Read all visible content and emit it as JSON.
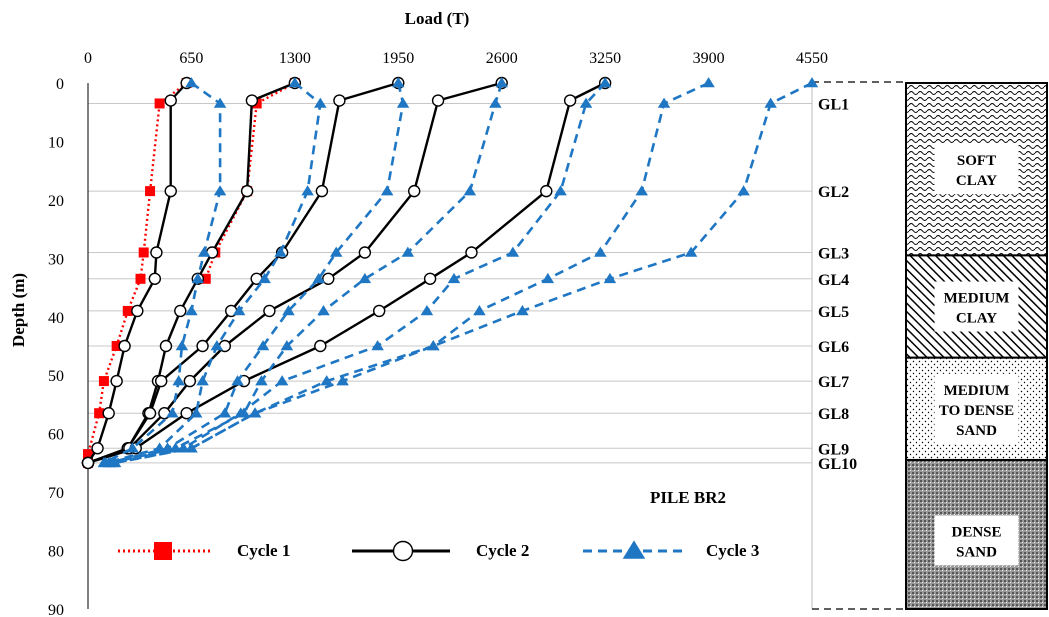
{
  "chart_data": {
    "type": "line",
    "title": "",
    "xlabel": "Load (T)",
    "ylabel": "Depth (m)",
    "xlim": [
      0,
      4550
    ],
    "ylim": [
      0,
      90
    ],
    "x_axis_position": "top",
    "y_inverted": true,
    "xticks": [
      "0",
      "650",
      "1300",
      "1950",
      "2600",
      "3250",
      "3900",
      "4550"
    ],
    "yticks": [
      "0",
      "10",
      "20",
      "30",
      "40",
      "50",
      "60",
      "70",
      "80",
      "90"
    ],
    "grid": "horizontal lines at GL levels",
    "annotation": "PILE BR2",
    "gauge_levels": [
      {
        "label": "GL1",
        "depth": 3.5
      },
      {
        "label": "GL2",
        "depth": 18.5
      },
      {
        "label": "GL3",
        "depth": 29
      },
      {
        "label": "GL4",
        "depth": 33.5
      },
      {
        "label": "GL5",
        "depth": 39
      },
      {
        "label": "GL6",
        "depth": 45
      },
      {
        "label": "GL7",
        "depth": 51
      },
      {
        "label": "GL8",
        "depth": 56.5
      },
      {
        "label": "GL9",
        "depth": 62.5
      },
      {
        "label": "GL10",
        "depth": 65
      }
    ],
    "soil_layers": [
      {
        "name": [
          "SOFT",
          "CLAY"
        ],
        "top": 0,
        "bottom": 29.5,
        "pattern": "soft"
      },
      {
        "name": [
          "MEDIUM",
          "CLAY"
        ],
        "top": 29.5,
        "bottom": 47,
        "pattern": "hatch"
      },
      {
        "name": [
          "MEDIUM",
          "TO DENSE",
          "SAND"
        ],
        "top": 47,
        "bottom": 64.5,
        "pattern": "dots"
      },
      {
        "name": [
          "DENSE",
          "SAND"
        ],
        "top": 64.5,
        "bottom": 90,
        "pattern": "dense"
      }
    ],
    "series": [
      {
        "name": "Cycle 1",
        "color": "#ff0000",
        "marker": "square",
        "style": "dotted",
        "curves": [
          [
            [
              620,
              0
            ],
            [
              450,
              3.5
            ],
            [
              390,
              18.5
            ],
            [
              350,
              29
            ],
            [
              330,
              33.5
            ],
            [
              250,
              39
            ],
            [
              180,
              45
            ],
            [
              100,
              51
            ],
            [
              70,
              56.5
            ],
            [
              0,
              63.5
            ],
            [
              0,
              65
            ]
          ],
          [
            [
              1300,
              0
            ],
            [
              1060,
              3.5
            ],
            [
              1000,
              18.5
            ],
            [
              800,
              29
            ],
            [
              740,
              33.5
            ]
          ]
        ]
      },
      {
        "name": "Cycle 2",
        "color": "#000000",
        "marker": "circle",
        "style": "solid",
        "curves": [
          [
            [
              620,
              0
            ],
            [
              520,
              3
            ],
            [
              520,
              18.5
            ],
            [
              430,
              29
            ],
            [
              420,
              33.5
            ],
            [
              310,
              39
            ],
            [
              230,
              45
            ],
            [
              180,
              51
            ],
            [
              130,
              56.5
            ],
            [
              60,
              62.5
            ],
            [
              0,
              65
            ]
          ],
          [
            [
              1300,
              0
            ],
            [
              1030,
              3
            ],
            [
              1000,
              18.5
            ],
            [
              780,
              29
            ],
            [
              690,
              33.5
            ],
            [
              580,
              39
            ],
            [
              490,
              45
            ],
            [
              440,
              51
            ],
            [
              380,
              56.5
            ],
            [
              250,
              62.5
            ],
            [
              0,
              65
            ]
          ],
          [
            [
              1950,
              0
            ],
            [
              1580,
              3
            ],
            [
              1470,
              18.5
            ],
            [
              1220,
              29
            ],
            [
              1060,
              33.5
            ],
            [
              900,
              39
            ],
            [
              720,
              45
            ],
            [
              460,
              51
            ],
            [
              390,
              56.5
            ],
            [
              250,
              62.5
            ],
            [
              0,
              65
            ]
          ],
          [
            [
              2600,
              0
            ],
            [
              2200,
              3
            ],
            [
              2050,
              18.5
            ],
            [
              1740,
              29
            ],
            [
              1510,
              33.5
            ],
            [
              1140,
              39
            ],
            [
              860,
              45
            ],
            [
              640,
              51
            ],
            [
              480,
              56.5
            ],
            [
              260,
              62.5
            ],
            [
              0,
              65
            ]
          ],
          [
            [
              3250,
              0
            ],
            [
              3030,
              3
            ],
            [
              2880,
              18.5
            ],
            [
              2410,
              29
            ],
            [
              2150,
              33.5
            ],
            [
              1830,
              39
            ],
            [
              1460,
              45
            ],
            [
              980,
              51
            ],
            [
              620,
              56.5
            ],
            [
              300,
              62.5
            ],
            [
              0,
              65
            ]
          ]
        ]
      },
      {
        "name": "Cycle 3",
        "color": "#1f77c4",
        "marker": "triangle",
        "style": "dashed",
        "curves": [
          [
            [
              650,
              0
            ],
            [
              830,
              3.5
            ],
            [
              830,
              18.5
            ],
            [
              730,
              29
            ],
            [
              690,
              33.5
            ],
            [
              650,
              39
            ],
            [
              590,
              45
            ],
            [
              570,
              51
            ],
            [
              530,
              56.5
            ],
            [
              280,
              62.5
            ],
            [
              100,
              65
            ]
          ],
          [
            [
              1300,
              0
            ],
            [
              1460,
              3.5
            ],
            [
              1380,
              18.5
            ],
            [
              1210,
              29
            ],
            [
              1110,
              33.5
            ],
            [
              950,
              39
            ],
            [
              810,
              45
            ],
            [
              720,
              51
            ],
            [
              680,
              56.5
            ],
            [
              450,
              62.5
            ],
            [
              110,
              65
            ]
          ],
          [
            [
              1950,
              0
            ],
            [
              1980,
              3.5
            ],
            [
              1880,
              18.5
            ],
            [
              1560,
              29
            ],
            [
              1450,
              33.5
            ],
            [
              1260,
              39
            ],
            [
              1100,
              45
            ],
            [
              940,
              51
            ],
            [
              860,
              56.5
            ],
            [
              500,
              62.5
            ],
            [
              130,
              65
            ]
          ],
          [
            [
              2600,
              0
            ],
            [
              2560,
              3.5
            ],
            [
              2400,
              18.5
            ],
            [
              2010,
              29
            ],
            [
              1740,
              33.5
            ],
            [
              1480,
              39
            ],
            [
              1250,
              45
            ],
            [
              1090,
              51
            ],
            [
              980,
              56.5
            ],
            [
              550,
              62.5
            ],
            [
              140,
              65
            ]
          ],
          [
            [
              3250,
              0
            ],
            [
              3130,
              3.5
            ],
            [
              2970,
              18.5
            ],
            [
              2670,
              29
            ],
            [
              2300,
              33.5
            ],
            [
              2130,
              39
            ],
            [
              1820,
              45
            ],
            [
              1220,
              51
            ],
            [
              960,
              56.5
            ],
            [
              600,
              62.5
            ],
            [
              150,
              65
            ]
          ],
          [
            [
              3900,
              0
            ],
            [
              3620,
              3.5
            ],
            [
              3480,
              18.5
            ],
            [
              3220,
              29
            ],
            [
              2890,
              33.5
            ],
            [
              2460,
              39
            ],
            [
              2170,
              45
            ],
            [
              1500,
              51
            ],
            [
              1050,
              56.5
            ],
            [
              650,
              62.5
            ],
            [
              160,
              65
            ]
          ],
          [
            [
              4550,
              0
            ],
            [
              4290,
              3.5
            ],
            [
              4120,
              18.5
            ],
            [
              3790,
              29
            ],
            [
              3280,
              33.5
            ],
            [
              2730,
              39
            ],
            [
              2170,
              45
            ],
            [
              1600,
              51
            ],
            [
              1050,
              56.5
            ],
            [
              650,
              62.5
            ],
            [
              170,
              65
            ]
          ]
        ]
      }
    ]
  }
}
